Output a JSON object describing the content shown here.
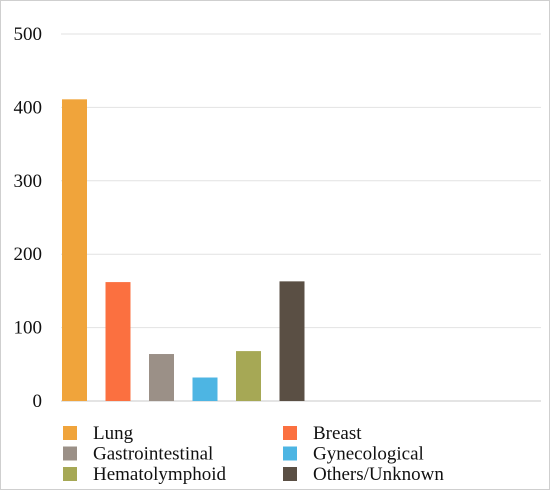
{
  "chart_data": {
    "type": "bar",
    "title": "",
    "xlabel": "",
    "ylabel": "",
    "ylim": [
      0,
      500
    ],
    "yticks": [
      0,
      100,
      200,
      300,
      400,
      500
    ],
    "grid": true,
    "legend_position": "bottom",
    "categories": [
      "Lung",
      "Breast",
      "Gastrointestinal",
      "Gynecological",
      "Hematolymphoid",
      "Others/Unknown"
    ],
    "values": [
      411,
      162,
      64,
      32,
      68,
      163
    ],
    "colors": [
      "#F0A43B",
      "#FB7040",
      "#9B9087",
      "#4DB5E3",
      "#A6A855",
      "#5A4F44"
    ]
  }
}
